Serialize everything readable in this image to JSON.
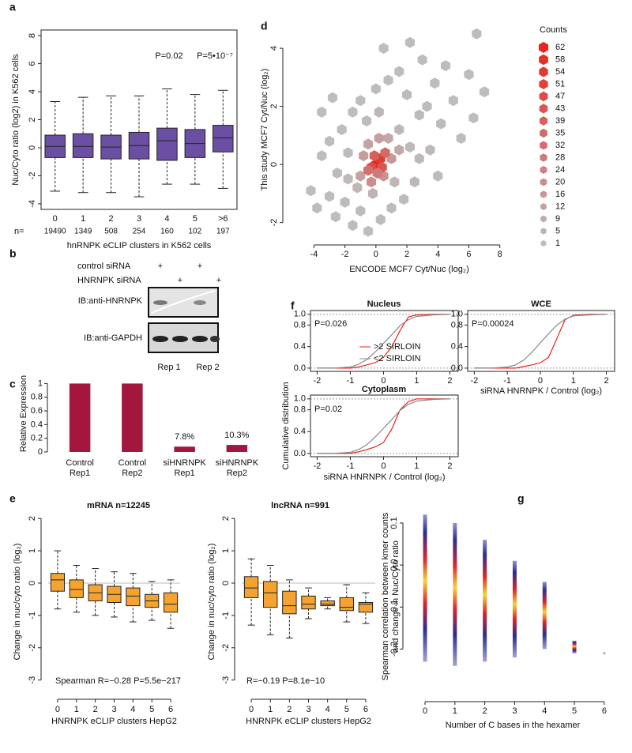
{
  "chart_data": [
    {
      "panel": "a",
      "type": "box",
      "ylabel": "Nuc/Cyto ratio (log2) in K562 cells",
      "xlabel": "hnRNPK eCLIP clusters  in K562 cells",
      "categories": [
        "0",
        "1",
        "2",
        "3",
        "4",
        "5",
        ">6"
      ],
      "n_label": "n=",
      "counts": [
        19490,
        1349,
        508,
        254,
        160,
        102,
        197
      ],
      "boxes": [
        {
          "low": -3.1,
          "q1": -0.7,
          "median": 0.1,
          "q3": 0.9,
          "high": 3.3
        },
        {
          "low": -3.2,
          "q1": -0.7,
          "median": 0.1,
          "q3": 1.0,
          "high": 3.6
        },
        {
          "low": -3.2,
          "q1": -0.8,
          "median": 0.05,
          "q3": 0.9,
          "high": 3.7
        },
        {
          "low": -3.5,
          "q1": -0.8,
          "median": 0.15,
          "q3": 1.1,
          "high": 3.7
        },
        {
          "low": -2.6,
          "q1": -0.9,
          "median": 0.5,
          "q3": 1.4,
          "high": 4.2
        },
        {
          "low": -2.6,
          "q1": -0.7,
          "median": 0.3,
          "q3": 1.3,
          "high": 3.8
        },
        {
          "low": -2.9,
          "q1": -0.3,
          "median": 0.7,
          "q3": 1.6,
          "high": 4.1
        }
      ],
      "color": "#6b4fa3",
      "ylim": [
        -4.4,
        8.4
      ],
      "yticks": [
        -4,
        -2,
        0,
        2,
        4,
        6,
        8
      ],
      "annotations": [
        "P=0.02",
        "P=5•10⁻⁷"
      ]
    },
    {
      "panel": "c",
      "type": "bar",
      "ylabel": "Relative Expression",
      "categories": [
        [
          "Control",
          "Rep1"
        ],
        [
          "Control",
          "Rep2"
        ],
        [
          "siHNRNPK",
          "Rep1"
        ],
        [
          "siHNRNPK",
          "Rep2"
        ]
      ],
      "values": [
        1,
        1,
        0.078,
        0.103
      ],
      "value_labels": [
        null,
        null,
        "7.8%",
        "10.3%"
      ],
      "color": "#a3173f",
      "ylim": [
        0,
        1.12
      ],
      "yticks": [
        0,
        0.2,
        0.4,
        0.6,
        0.8,
        1
      ]
    },
    {
      "panel": "d",
      "type": "hexbin",
      "xlabel": "ENCODE MCF7 Cyt/Nuc (log₂)",
      "ylabel": "This study MCF7 Cyt/Nuc (log₂)",
      "x": [
        -4.2,
        -3.8,
        -3.5,
        -3,
        -3,
        -2.6,
        -2.5,
        -2.2,
        -2,
        -1.8,
        -1.5,
        -1.5,
        -1,
        -1,
        -0.5,
        -0.6,
        0,
        0.3,
        0.8,
        1,
        1.5,
        1.8,
        2,
        2.5,
        2.8,
        3,
        3.5,
        3.8,
        4.2,
        4.5,
        5,
        5.5,
        6,
        6.5,
        7,
        -2.8,
        -3.5,
        0.5,
        2.2,
        4,
        6.3,
        -0.2,
        1.2,
        -1.2,
        1.5,
        2.2,
        -1.8,
        0.2,
        2.8,
        3.3,
        -1,
        -0.8,
        0.8,
        1,
        -0.3,
        0.5,
        1.5,
        -0.5,
        0.2,
        0,
        0.3,
        -0.3,
        0.4,
        -0.1,
        0.6,
        -0.5,
        0.1
      ],
      "y": [
        -0.9,
        -1.5,
        0.3,
        -1.1,
        0.8,
        -1.8,
        -0.3,
        1.2,
        -1.3,
        0.4,
        -2.1,
        1.8,
        -1.6,
        2.2,
        -2.3,
        1.5,
        2.6,
        -1.9,
        2.9,
        -1.5,
        3.2,
        -1.2,
        2.4,
        -0.6,
        1.7,
        3.6,
        0.5,
        2.8,
        1.4,
        3.4,
        2.2,
        0.9,
        3.1,
        4.5,
        2.5,
        2.3,
        1.8,
        4,
        4.2,
        -0.4,
        1.6,
        -1,
        -0.6,
        -0.8,
        1.2,
        0.6,
        -0.5,
        1.8,
        0.2,
        2,
        -0.4,
        0.3,
        0.9,
        0.2,
        -0.6,
        -0.4,
        0.5,
        0.7,
        0.9,
        0,
        0.2,
        -0.1,
        -0.1,
        0.3,
        0.4,
        -0.2,
        -0.3
      ],
      "counts": [
        1,
        1,
        1,
        1,
        1,
        1,
        2,
        1,
        2,
        2,
        1,
        1,
        2,
        1,
        1,
        2,
        1,
        2,
        1,
        2,
        1,
        2,
        2,
        3,
        2,
        1,
        3,
        1,
        2,
        1,
        1,
        1,
        1,
        1,
        1,
        1,
        1,
        1,
        1,
        2,
        1,
        5,
        4,
        4,
        4,
        3,
        3,
        4,
        3,
        2,
        12,
        14,
        10,
        16,
        20,
        18,
        9,
        11,
        13,
        62,
        54,
        47,
        43,
        39,
        35,
        32,
        28
      ],
      "color_low": "#bdbdbd",
      "color_high": "#e8261f",
      "legend_title": "Counts",
      "legend_counts": [
        62,
        58,
        54,
        51,
        47,
        43,
        39,
        35,
        32,
        28,
        24,
        20,
        16,
        12,
        9,
        5,
        1
      ],
      "xlim": [
        -5.5,
        9.8
      ],
      "xticks": [
        -4,
        -2,
        0,
        2,
        4,
        6,
        8
      ],
      "ylim": [
        -2.5,
        4.9
      ],
      "yticks": [
        -2,
        0,
        2,
        4
      ]
    },
    {
      "panel": "e",
      "type": "box",
      "title": "mRNA n=12245",
      "annotation": "Spearman R=−0.28 P=5.5e−217",
      "xlabel": "HNRNPK eCLIP clusters HepG2",
      "ylabel": "Change in nuc/cyto ratio (log₂)",
      "categories": [
        "0",
        "1",
        "2",
        "3",
        "4",
        "5",
        "6"
      ],
      "boxes": [
        {
          "low": -0.8,
          "q1": -0.25,
          "median": 0.1,
          "q3": 0.3,
          "high": 1.0
        },
        {
          "low": -0.9,
          "q1": -0.45,
          "median": -0.2,
          "q3": 0.1,
          "high": 0.55
        },
        {
          "low": -1.0,
          "q1": -0.55,
          "median": -0.3,
          "q3": -0.05,
          "high": 0.45
        },
        {
          "low": -1.05,
          "q1": -0.6,
          "median": -0.35,
          "q3": -0.1,
          "high": 0.35
        },
        {
          "low": -1.2,
          "q1": -0.7,
          "median": -0.4,
          "q3": -0.15,
          "high": 0.3
        },
        {
          "low": -1.15,
          "q1": -0.75,
          "median": -0.55,
          "q3": -0.35,
          "high": 0.05
        },
        {
          "low": -1.4,
          "q1": -0.9,
          "median": -0.65,
          "q3": -0.3,
          "high": 0.1
        }
      ],
      "color": "#f5a330",
      "hline": 0,
      "ylim": [
        -3.35,
        2.2
      ],
      "yticks": [
        -3,
        -2,
        -1,
        0,
        1,
        2
      ]
    },
    {
      "type": "box",
      "title": "lncRNA n=991",
      "annotation": "R=−0.19 P=8.1e−10",
      "xlabel": "HNRNPK eCLIP clusters HepG2",
      "ylabel": "Change in nuc/cyto ratio (log₂)",
      "categories": [
        "0",
        "1",
        "2",
        "3",
        "4",
        "5",
        "6"
      ],
      "boxes": [
        {
          "low": -1.3,
          "q1": -0.45,
          "median": -0.15,
          "q3": 0.2,
          "high": 0.75
        },
        {
          "low": -1.6,
          "q1": -0.75,
          "median": -0.3,
          "q3": 0.05,
          "high": 0.55
        },
        {
          "low": -1.7,
          "q1": -0.95,
          "median": -0.7,
          "q3": -0.25,
          "high": 0.1
        },
        {
          "low": -1.1,
          "q1": -0.8,
          "median": -0.65,
          "q3": -0.4,
          "high": -0.15
        },
        {
          "low": -0.8,
          "q1": -0.7,
          "median": -0.65,
          "q3": -0.55,
          "high": -0.45
        },
        {
          "low": -1.2,
          "q1": -0.85,
          "median": -0.75,
          "q3": -0.45,
          "high": -0.05
        },
        {
          "low": -1.25,
          "q1": -0.9,
          "median": -0.65,
          "q3": -0.6,
          "high": -0.3
        }
      ],
      "color": "#f5a330",
      "hline": 0,
      "ylim": [
        -3.35,
        2.2
      ],
      "yticks": [
        -3,
        -2,
        -1,
        0,
        1,
        2
      ]
    },
    {
      "panel": "f",
      "type": "line",
      "title": "Nucleus",
      "annotation": "P=0.026",
      "x": [
        -2,
        -1.5,
        -1,
        -0.75,
        -0.5,
        -0.25,
        0,
        0.25,
        0.5,
        0.75,
        1,
        1.5,
        2
      ],
      "series": [
        {
          "name": ">2 SIRLOIN",
          "color": "#e8251d",
          "values": [
            0,
            0,
            0,
            0.02,
            0.06,
            0.1,
            0.2,
            0.4,
            0.7,
            0.95,
            0.99,
            1,
            1
          ]
        },
        {
          "name": "<2 SIRLOIN",
          "color": "#888888",
          "values": [
            0,
            0,
            0.02,
            0.07,
            0.16,
            0.3,
            0.46,
            0.62,
            0.79,
            0.9,
            0.96,
            0.99,
            1
          ]
        }
      ],
      "hlines": [
        0,
        1
      ],
      "xlim": [
        -2.2,
        2.25
      ],
      "xticks": [
        -2,
        -1,
        0,
        1,
        2
      ],
      "ylim": [
        -0.06,
        1.07
      ],
      "yticks": [
        {
          "value": 0,
          "label": "0.0"
        },
        {
          "value": 0.4,
          "label": "0.4"
        },
        {
          "value": 0.8,
          "label": "0.8"
        },
        {
          "value": 1,
          "label": "1.0"
        }
      ]
    },
    {
      "type": "line",
      "title": "WCE",
      "annotation": "P=0.00024",
      "xlabel": "siRNA HNRNPK / Control (log₂)",
      "x": [
        -2,
        -1.5,
        -1,
        -0.75,
        -0.5,
        -0.25,
        0,
        0.25,
        0.5,
        0.75,
        1,
        1.5,
        2
      ],
      "series": [
        {
          "color": "#e8251d",
          "values": [
            0,
            0,
            0,
            0,
            0.03,
            0.06,
            0.1,
            0.2,
            0.55,
            0.9,
            0.98,
            1,
            1
          ]
        },
        {
          "color": "#888888",
          "values": [
            0,
            0,
            0.02,
            0.06,
            0.15,
            0.3,
            0.47,
            0.64,
            0.8,
            0.91,
            0.97,
            0.99,
            1
          ]
        }
      ],
      "hlines": [
        0,
        1
      ],
      "xlim": [
        -2.2,
        2.25
      ],
      "xticks": [
        -2,
        -1,
        0,
        1,
        2
      ],
      "ylim": [
        -0.06,
        1.07
      ],
      "yticks": [
        {
          "value": 0,
          "label": "0.0"
        },
        {
          "value": 0.4,
          "label": "0.4"
        },
        {
          "value": 0.8,
          "label": "0.8"
        },
        {
          "value": 1,
          "label": "1.0"
        }
      ]
    },
    {
      "type": "line",
      "title": "Cytoplasm",
      "annotation": "P=0.02",
      "xlabel": "siRNA HNRNPK / Control (log₂)",
      "ylabel": "Cumulative distribution",
      "x": [
        -2,
        -1.5,
        -1,
        -0.75,
        -0.5,
        -0.25,
        0,
        0.25,
        0.5,
        0.75,
        1,
        1.5,
        2
      ],
      "series": [
        {
          "color": "#e8251d",
          "values": [
            0,
            0,
            0,
            0.03,
            0.07,
            0.12,
            0.2,
            0.45,
            0.8,
            0.95,
            1,
            1,
            1
          ]
        },
        {
          "color": "#888888",
          "values": [
            0,
            0,
            0.02,
            0.07,
            0.16,
            0.3,
            0.46,
            0.62,
            0.79,
            0.9,
            0.96,
            0.99,
            1
          ]
        }
      ],
      "hlines": [
        0,
        1
      ],
      "xlim": [
        -2.2,
        2.25
      ],
      "xticks": [
        -2,
        -1,
        0,
        1,
        2
      ],
      "ylim": [
        -0.06,
        1.07
      ],
      "yticks": [
        {
          "value": 0,
          "label": "0.0"
        },
        {
          "value": 0.4,
          "label": "0.4"
        },
        {
          "value": 0.8,
          "label": "0.8"
        },
        {
          "value": 1,
          "label": "1.0"
        }
      ]
    },
    {
      "panel": "g",
      "type": "range",
      "xlabel": "Number of C bases in the hexamer",
      "ylabel": [
        "Spearman correlation between kmer counts",
        "and change in Nuc/Cyto ratio"
      ],
      "x": [
        0,
        1,
        2,
        3,
        4,
        5,
        6
      ],
      "ymin": [
        -0.23,
        -0.24,
        -0.23,
        -0.22,
        -0.2,
        -0.21,
        -0.21
      ],
      "ymax": [
        0.12,
        0.1,
        0.06,
        0.01,
        -0.04,
        -0.18,
        -0.21
      ],
      "xlim": [
        -0.53,
        6.4
      ],
      "xticks": [
        0,
        1,
        2,
        3,
        4,
        5,
        6
      ],
      "ylim": [
        -0.31,
        0.16
      ],
      "yticks": [
        -0.2,
        -0.1,
        {
          "value": 0,
          "label": "0.0"
        },
        0.1
      ]
    }
  ],
  "blot": {
    "panel": "b",
    "rows": [
      "control siRNA",
      "HNRNPK siRNA"
    ],
    "plus": "+",
    "antibodies": [
      "IB:anti-HNRNPK",
      "IB:anti-GAPDH"
    ],
    "reps": [
      "Rep 1",
      "Rep 2"
    ]
  }
}
